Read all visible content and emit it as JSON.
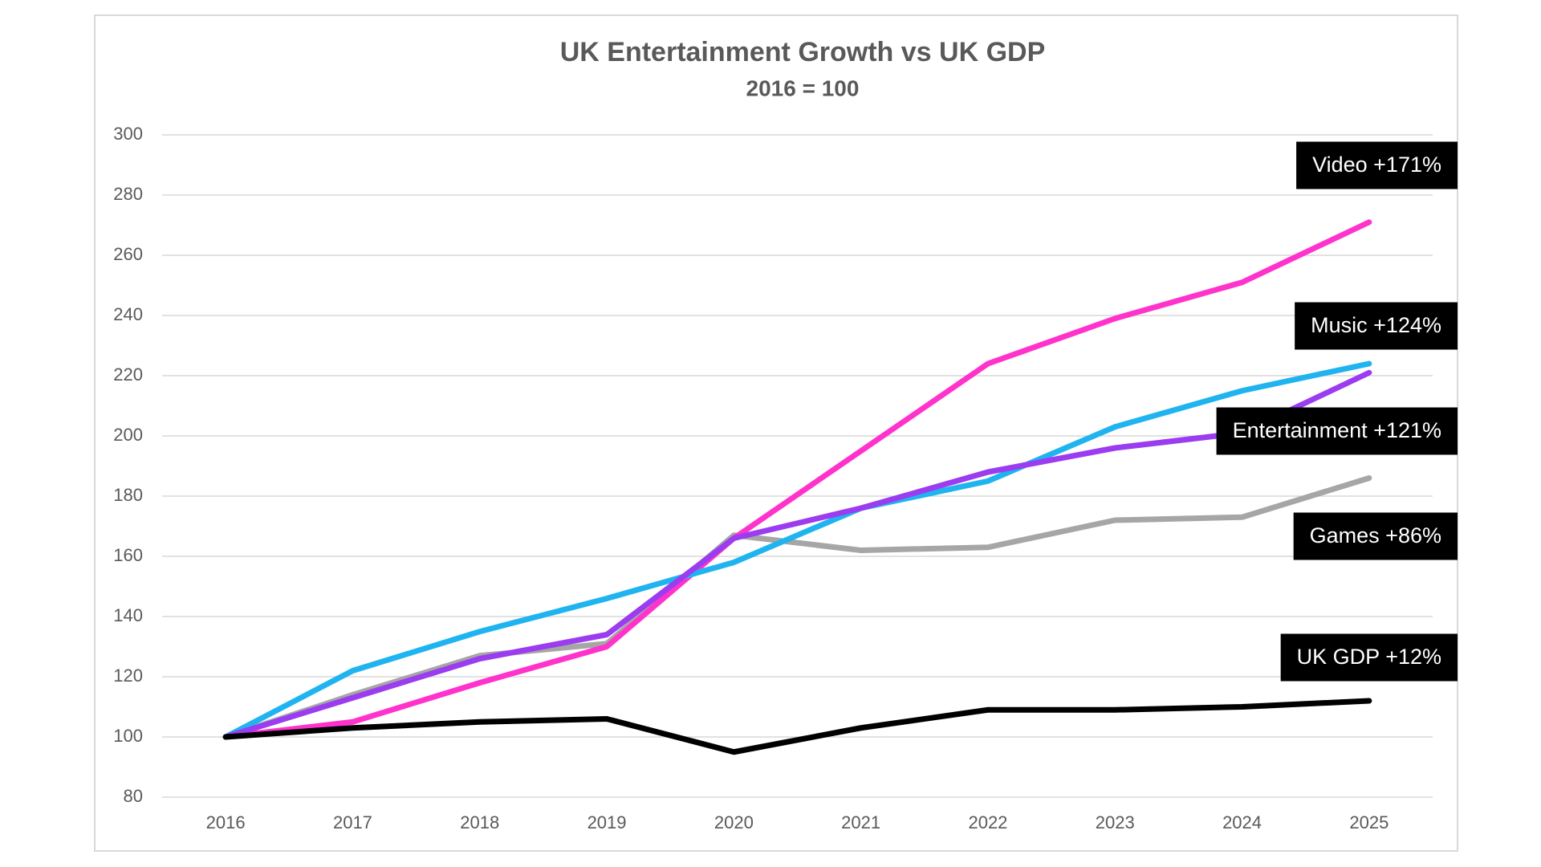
{
  "chart_data": {
    "type": "line",
    "title": "UK Entertainment Growth vs UK GDP",
    "subtitle": "2016 = 100",
    "categories": [
      "2016",
      "2017",
      "2018",
      "2019",
      "2020",
      "2021",
      "2022",
      "2023",
      "2024",
      "2025"
    ],
    "series": [
      {
        "name": "Video +171%",
        "color": "#ff33cc",
        "values": [
          100,
          105,
          118,
          130,
          166,
          195,
          224,
          239,
          251,
          271
        ]
      },
      {
        "name": "Music +124%",
        "color": "#1fb4f0",
        "values": [
          100,
          122,
          135,
          146,
          158,
          176,
          185,
          203,
          215,
          224
        ]
      },
      {
        "name": "Entertainment +121%",
        "color": "#9b3cf0",
        "values": [
          100,
          113,
          126,
          134,
          166,
          176,
          188,
          196,
          201,
          221
        ]
      },
      {
        "name": "Games +86%",
        "color": "#a6a6a6",
        "values": [
          100,
          114,
          127,
          131,
          167,
          162,
          163,
          172,
          173,
          186
        ]
      },
      {
        "name": "UK GDP +12%",
        "color": "#000000",
        "values": [
          100,
          103,
          105,
          106,
          95,
          103,
          109,
          109,
          110,
          112
        ]
      }
    ],
    "ylim": [
      80,
      300
    ],
    "yticks": [
      80,
      100,
      120,
      140,
      160,
      180,
      200,
      220,
      240,
      260,
      280,
      300
    ],
    "grid": true
  }
}
